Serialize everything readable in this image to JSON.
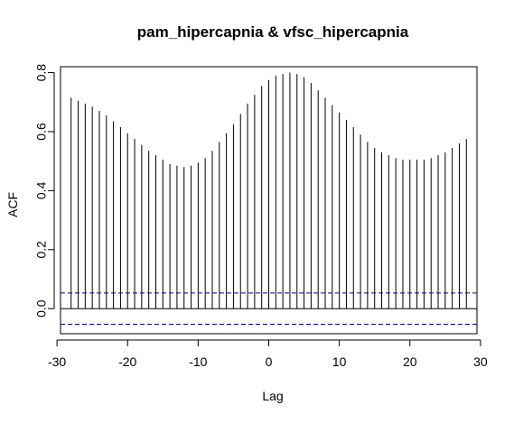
{
  "chart_data": {
    "type": "bar",
    "title": "pam_hipercapnia & vfsc_hipercapnia",
    "xlabel": "Lag",
    "ylabel": "ACF",
    "xlim": [
      -29.5,
      29.5
    ],
    "ylim": [
      -0.085,
      0.82
    ],
    "x_ticks": [
      -30,
      -20,
      -10,
      0,
      10,
      20,
      30
    ],
    "x_tick_labels": [
      "-30",
      "-20",
      "-10",
      "0",
      "10",
      "20",
      "30"
    ],
    "y_ticks": [
      0.0,
      0.2,
      0.4,
      0.6,
      0.8
    ],
    "y_tick_labels": [
      "0.0",
      "0.2",
      "0.4",
      "0.6",
      "0.8"
    ],
    "confidence_bound": 0.053,
    "zero_line": 0,
    "lags": [
      -28,
      -27,
      -26,
      -25,
      -24,
      -23,
      -22,
      -21,
      -20,
      -19,
      -18,
      -17,
      -16,
      -15,
      -14,
      -13,
      -12,
      -11,
      -10,
      -9,
      -8,
      -7,
      -6,
      -5,
      -4,
      -3,
      -2,
      -1,
      0,
      1,
      2,
      3,
      4,
      5,
      6,
      7,
      8,
      9,
      10,
      11,
      12,
      13,
      14,
      15,
      16,
      17,
      18,
      19,
      20,
      21,
      22,
      23,
      24,
      25,
      26,
      27,
      28
    ],
    "values": [
      0.715,
      0.705,
      0.695,
      0.685,
      0.67,
      0.655,
      0.635,
      0.615,
      0.595,
      0.575,
      0.555,
      0.535,
      0.52,
      0.505,
      0.49,
      0.485,
      0.48,
      0.485,
      0.495,
      0.51,
      0.535,
      0.565,
      0.595,
      0.625,
      0.66,
      0.695,
      0.725,
      0.755,
      0.775,
      0.79,
      0.795,
      0.8,
      0.795,
      0.785,
      0.765,
      0.74,
      0.715,
      0.69,
      0.665,
      0.64,
      0.615,
      0.59,
      0.565,
      0.545,
      0.53,
      0.52,
      0.51,
      0.505,
      0.505,
      0.505,
      0.505,
      0.51,
      0.52,
      0.53,
      0.545,
      0.56,
      0.575
    ],
    "grid": false,
    "colors": {
      "bars": "#000000",
      "confidence_lines": "#00008B",
      "axes": "#000000"
    }
  }
}
